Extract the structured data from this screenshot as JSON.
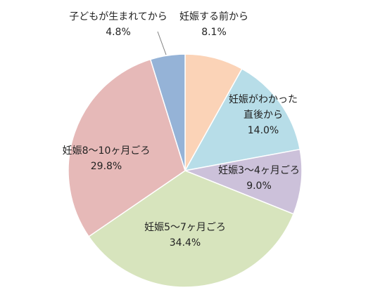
{
  "chart_data": {
    "type": "pie",
    "slices": [
      {
        "label_lines": [
          "妊娠する前から"
        ],
        "value": 8.1,
        "value_text": "8.1%",
        "color": "#FBD3B7"
      },
      {
        "label_lines": [
          "妊娠がわかった",
          "直後から"
        ],
        "value": 14.0,
        "value_text": "14.0%",
        "color": "#B7DDE8"
      },
      {
        "label_lines": [
          "妊娠3～4ヶ月ごろ"
        ],
        "value": 9.0,
        "value_text": "9.0%",
        "color": "#CCC1DA"
      },
      {
        "label_lines": [
          "妊娠5～7ヶ月ごろ"
        ],
        "value": 34.4,
        "value_text": "34.4%",
        "color": "#D7E4BD"
      },
      {
        "label_lines": [
          "妊娠8～10ヶ月ごろ"
        ],
        "value": 29.8,
        "value_text": "29.8%",
        "color": "#E6B9B8"
      },
      {
        "label_lines": [
          "子どもが生まれてから"
        ],
        "value": 4.8,
        "value_text": "4.8%",
        "color": "#95B3D7"
      }
    ],
    "start_angle_deg": 0,
    "direction": "clockwise",
    "legend": "none"
  }
}
